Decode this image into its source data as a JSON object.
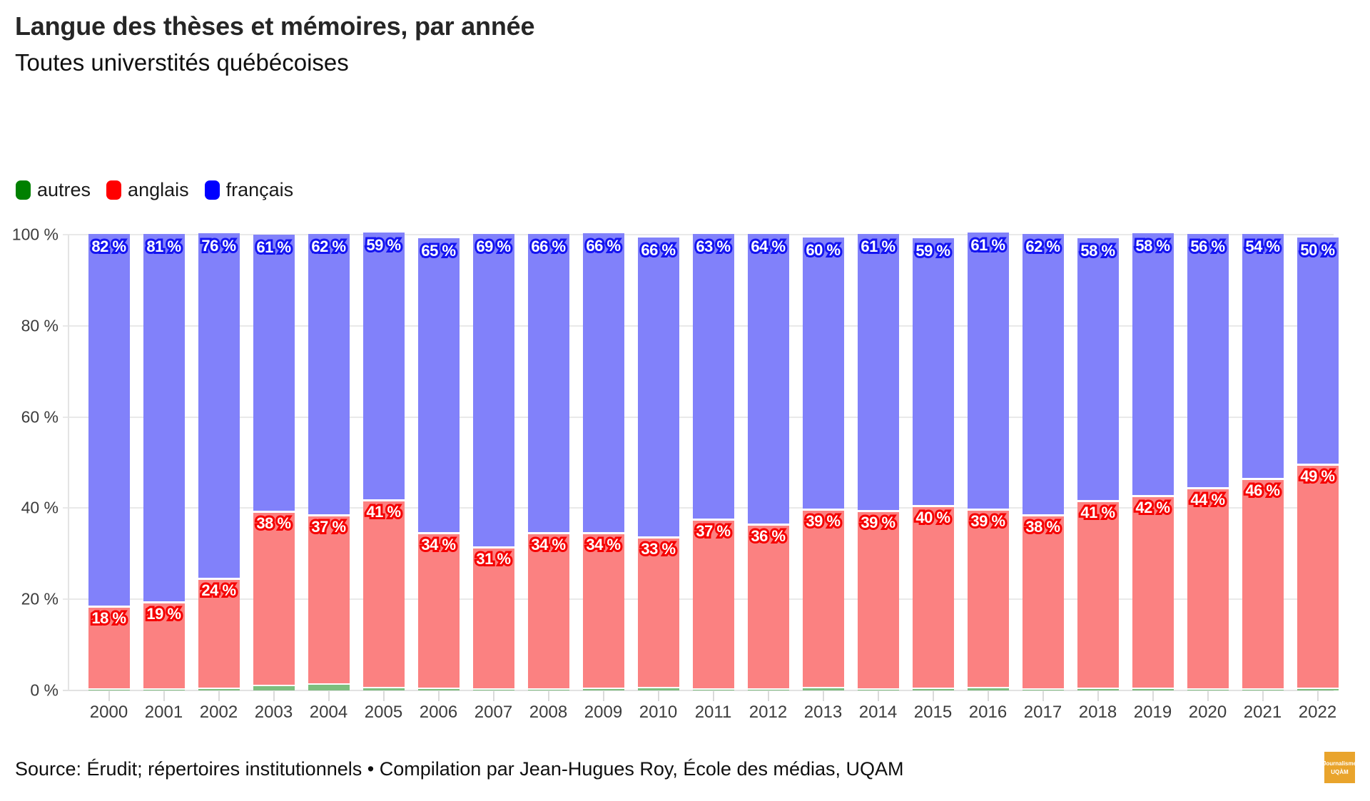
{
  "header": {
    "title": "Langue des thèses et mémoires, par année",
    "subtitle": "Toutes universtités québécoises"
  },
  "footer": {
    "source_line": "Source: Érudit; répertoires institutionnels • Compilation par Jean-Hugues Roy, École des médias, UQAM"
  },
  "logo": {
    "line1": "Journalisme",
    "line2": "UQÀM",
    "background_color": "#e9a42c"
  },
  "colors": {
    "grid": "#e9e9e9",
    "axis_text": "#3c3c3c",
    "label_text": "#ffffff"
  },
  "chart_data": {
    "type": "bar",
    "stacked": true,
    "title": "Langue des thèses et mémoires, par année",
    "subtitle": "Toutes universtités québécoises",
    "xlabel": "",
    "ylabel": "",
    "ylim": [
      0,
      100
    ],
    "grid": true,
    "legend_position": "top-left",
    "y_ticks": [
      0,
      20,
      40,
      60,
      80,
      100
    ],
    "y_tick_suffix": " %",
    "categories": [
      "2000",
      "2001",
      "2002",
      "2003",
      "2004",
      "2005",
      "2006",
      "2007",
      "2008",
      "2009",
      "2010",
      "2011",
      "2012",
      "2013",
      "2014",
      "2015",
      "2016",
      "2017",
      "2018",
      "2019",
      "2020",
      "2021",
      "2022"
    ],
    "series": [
      {
        "name": "autres",
        "css_key": "autres",
        "legend_color": "#008000",
        "fill_color": "#7cbe7e",
        "labeled": false,
        "values": [
          0.2,
          0.15,
          0.3,
          1.0,
          1.2,
          0.5,
          0.3,
          0.2,
          0.2,
          0.25,
          0.4,
          0.2,
          0.2,
          0.4,
          0.15,
          0.3,
          0.4,
          0.2,
          0.3,
          0.35,
          0.2,
          0.2,
          0.3
        ]
      },
      {
        "name": "anglais",
        "css_key": "anglais",
        "legend_color": "#ff0000",
        "fill_color": "#fb8181",
        "label_outline": "#f50000",
        "labeled": true,
        "values": [
          18,
          19,
          24,
          38,
          37,
          41,
          34,
          31,
          34,
          34,
          33,
          37,
          36,
          39,
          39,
          40,
          39,
          38,
          41,
          42,
          44,
          46,
          49
        ]
      },
      {
        "name": "français",
        "css_key": "francais",
        "legend_color": "#0000ff",
        "fill_color": "#8181fa",
        "label_outline": "#1414f0",
        "labeled": true,
        "values": [
          82,
          81,
          76,
          61,
          62,
          59,
          65,
          69,
          66,
          66,
          66,
          63,
          64,
          60,
          61,
          59,
          61,
          62,
          58,
          58,
          56,
          54,
          50
        ]
      }
    ],
    "label_format": "{v} %"
  }
}
